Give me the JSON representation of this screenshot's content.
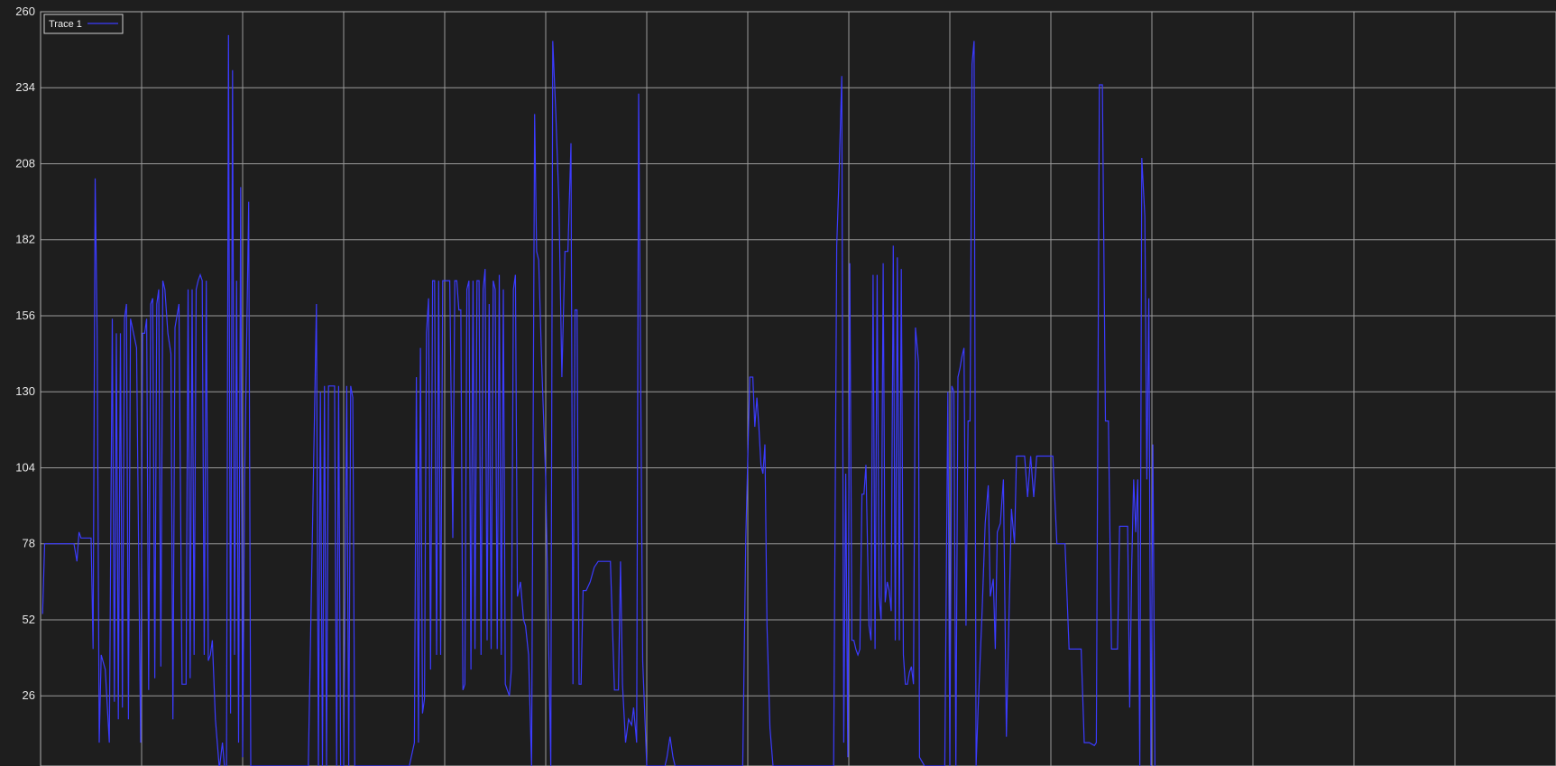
{
  "colors": {
    "background": "#1e1e1e",
    "plot_background": "#1e1e1e",
    "grid": "#9a9a9a",
    "axes_frame": "#b0b0b0",
    "tick_label": "#e6e6e6",
    "trace": "#3b3bff",
    "legend_border": "#d0d0d0"
  },
  "legend": {
    "label": "Trace 1",
    "placement": "top-left"
  },
  "chart_data": {
    "type": "line",
    "title": "",
    "xlabel": "",
    "ylabel": "",
    "ylim": [
      2,
      260
    ],
    "y_ticks": [
      26,
      52,
      78,
      104,
      130,
      156,
      182,
      208,
      234,
      260
    ],
    "x_grid_divisions": 15,
    "grid": true,
    "series": [
      {
        "name": "Trace 1",
        "points": [
          [
            0.2,
            54
          ],
          [
            0.4,
            78
          ],
          [
            3.3,
            78
          ],
          [
            3.6,
            72
          ],
          [
            3.8,
            82
          ],
          [
            4.0,
            80
          ],
          [
            5.0,
            80
          ],
          [
            5.2,
            42
          ],
          [
            5.4,
            203
          ],
          [
            5.6,
            150
          ],
          [
            5.8,
            10
          ],
          [
            6.0,
            40
          ],
          [
            6.4,
            35
          ],
          [
            6.8,
            10
          ],
          [
            7.1,
            155
          ],
          [
            7.3,
            24
          ],
          [
            7.5,
            150
          ],
          [
            7.7,
            18
          ],
          [
            7.9,
            150
          ],
          [
            8.1,
            22
          ],
          [
            8.3,
            155
          ],
          [
            8.5,
            160
          ],
          [
            8.7,
            18
          ],
          [
            8.9,
            155
          ],
          [
            9.5,
            145
          ],
          [
            9.9,
            10
          ],
          [
            10.1,
            150
          ],
          [
            10.3,
            150
          ],
          [
            10.5,
            155
          ],
          [
            10.7,
            28
          ],
          [
            10.9,
            160
          ],
          [
            11.1,
            162
          ],
          [
            11.3,
            32
          ],
          [
            11.5,
            160
          ],
          [
            11.7,
            165
          ],
          [
            11.9,
            36
          ],
          [
            12.1,
            168
          ],
          [
            12.3,
            165
          ],
          [
            12.6,
            150
          ],
          [
            12.9,
            143
          ],
          [
            13.1,
            18
          ],
          [
            13.3,
            152
          ],
          [
            13.7,
            160
          ],
          [
            14.0,
            30
          ],
          [
            14.4,
            30
          ],
          [
            14.6,
            165
          ],
          [
            14.8,
            32
          ],
          [
            15.0,
            165
          ],
          [
            15.2,
            40
          ],
          [
            15.4,
            165
          ],
          [
            15.6,
            168
          ],
          [
            15.8,
            170
          ],
          [
            16.0,
            168
          ],
          [
            16.2,
            40
          ],
          [
            16.4,
            168
          ],
          [
            16.6,
            38
          ],
          [
            16.8,
            40
          ],
          [
            17.0,
            45
          ],
          [
            17.3,
            18
          ],
          [
            17.7,
            1
          ],
          [
            18.0,
            10
          ],
          [
            18.2,
            2
          ],
          [
            18.4,
            1
          ],
          [
            18.6,
            252
          ],
          [
            18.8,
            20
          ],
          [
            19.0,
            240
          ],
          [
            19.2,
            40
          ],
          [
            19.4,
            168
          ],
          [
            19.6,
            10
          ],
          [
            19.8,
            200
          ],
          [
            20.0,
            5
          ],
          [
            20.2,
            100
          ],
          [
            20.6,
            195
          ],
          [
            20.8,
            2
          ],
          [
            26.5,
            2
          ],
          [
            27.0,
            100
          ],
          [
            27.3,
            160
          ],
          [
            27.5,
            2
          ],
          [
            27.7,
            130
          ],
          [
            27.9,
            2
          ],
          [
            28.1,
            132
          ],
          [
            28.3,
            2
          ],
          [
            28.5,
            132
          ],
          [
            28.8,
            132
          ],
          [
            29.1,
            132
          ],
          [
            29.3,
            2
          ],
          [
            29.5,
            132
          ],
          [
            29.7,
            2
          ],
          [
            30.0,
            2
          ],
          [
            30.3,
            132
          ],
          [
            30.5,
            2
          ],
          [
            30.7,
            132
          ],
          [
            30.9,
            128
          ],
          [
            31.1,
            2
          ],
          [
            36.5,
            2
          ],
          [
            37.0,
            10
          ],
          [
            37.2,
            135
          ],
          [
            37.4,
            10
          ],
          [
            37.6,
            145
          ],
          [
            37.8,
            20
          ],
          [
            38.0,
            25
          ],
          [
            38.2,
            150
          ],
          [
            38.4,
            162
          ],
          [
            38.6,
            35
          ],
          [
            38.8,
            168
          ],
          [
            39.0,
            168
          ],
          [
            39.2,
            40
          ],
          [
            39.4,
            168
          ],
          [
            39.6,
            40
          ],
          [
            39.8,
            168
          ],
          [
            40.0,
            168
          ],
          [
            40.2,
            168
          ],
          [
            40.5,
            168
          ],
          [
            40.8,
            80
          ],
          [
            41.0,
            168
          ],
          [
            41.2,
            168
          ],
          [
            41.4,
            158
          ],
          [
            41.6,
            158
          ],
          [
            41.8,
            28
          ],
          [
            42.0,
            30
          ],
          [
            42.2,
            165
          ],
          [
            42.4,
            168
          ],
          [
            42.6,
            35
          ],
          [
            42.8,
            168
          ],
          [
            43.0,
            42
          ],
          [
            43.2,
            168
          ],
          [
            43.4,
            168
          ],
          [
            43.6,
            40
          ],
          [
            43.8,
            165
          ],
          [
            44.0,
            172
          ],
          [
            44.2,
            45
          ],
          [
            44.4,
            160
          ],
          [
            44.6,
            42
          ],
          [
            44.8,
            168
          ],
          [
            45.0,
            165
          ],
          [
            45.2,
            42
          ],
          [
            45.4,
            170
          ],
          [
            45.6,
            40
          ],
          [
            45.8,
            165
          ],
          [
            46.0,
            30
          ],
          [
            46.2,
            28
          ],
          [
            46.4,
            26
          ],
          [
            46.6,
            35
          ],
          [
            46.8,
            165
          ],
          [
            47.0,
            170
          ],
          [
            47.2,
            60
          ],
          [
            47.5,
            65
          ],
          [
            47.8,
            52
          ],
          [
            48.0,
            50
          ],
          [
            48.3,
            40
          ],
          [
            48.6,
            2
          ],
          [
            48.9,
            225
          ],
          [
            49.1,
            178
          ],
          [
            49.3,
            175
          ],
          [
            49.6,
            140
          ],
          [
            50.0,
            100
          ],
          [
            50.5,
            2
          ],
          [
            50.7,
            250
          ],
          [
            51.0,
            225
          ],
          [
            51.3,
            195
          ],
          [
            51.6,
            135
          ],
          [
            51.9,
            178
          ],
          [
            52.2,
            178
          ],
          [
            52.5,
            215
          ],
          [
            52.7,
            30
          ],
          [
            52.9,
            158
          ],
          [
            53.1,
            158
          ],
          [
            53.3,
            30
          ],
          [
            53.5,
            30
          ],
          [
            53.7,
            62
          ],
          [
            54.0,
            62
          ],
          [
            54.4,
            65
          ],
          [
            54.8,
            70
          ],
          [
            55.2,
            72
          ],
          [
            55.6,
            72
          ],
          [
            56.0,
            72
          ],
          [
            56.4,
            72
          ],
          [
            56.8,
            28
          ],
          [
            57.2,
            28
          ],
          [
            57.4,
            72
          ],
          [
            57.6,
            30
          ],
          [
            57.9,
            10
          ],
          [
            58.2,
            18
          ],
          [
            58.5,
            16
          ],
          [
            58.7,
            22
          ],
          [
            59.0,
            10
          ],
          [
            59.2,
            232
          ],
          [
            59.6,
            38
          ],
          [
            60.0,
            2
          ],
          [
            61.5,
            2
          ],
          [
            61.8,
            2
          ],
          [
            62.0,
            5
          ],
          [
            62.3,
            12
          ],
          [
            62.6,
            5
          ],
          [
            62.8,
            2
          ],
          [
            69.5,
            2
          ],
          [
            69.8,
            80
          ],
          [
            70.2,
            135
          ],
          [
            70.5,
            135
          ],
          [
            70.7,
            118
          ],
          [
            70.9,
            128
          ],
          [
            71.1,
            118
          ],
          [
            71.3,
            105
          ],
          [
            71.5,
            102
          ],
          [
            71.7,
            112
          ],
          [
            71.9,
            50
          ],
          [
            72.2,
            15
          ],
          [
            72.5,
            2
          ],
          [
            78.5,
            2
          ],
          [
            78.8,
            180
          ],
          [
            79.0,
            200
          ],
          [
            79.3,
            238
          ],
          [
            79.5,
            10
          ],
          [
            79.7,
            102
          ],
          [
            79.9,
            5
          ],
          [
            80.1,
            174
          ],
          [
            80.3,
            45
          ],
          [
            80.5,
            45
          ],
          [
            80.7,
            42
          ],
          [
            80.9,
            40
          ],
          [
            81.1,
            42
          ],
          [
            81.3,
            95
          ],
          [
            81.5,
            95
          ],
          [
            81.7,
            105
          ],
          [
            82.0,
            50
          ],
          [
            82.2,
            45
          ],
          [
            82.4,
            170
          ],
          [
            82.6,
            42
          ],
          [
            82.8,
            170
          ],
          [
            83.0,
            60
          ],
          [
            83.2,
            52
          ],
          [
            83.4,
            174
          ],
          [
            83.6,
            58
          ],
          [
            83.8,
            65
          ],
          [
            84.0,
            62
          ],
          [
            84.2,
            55
          ],
          [
            84.4,
            180
          ],
          [
            84.6,
            45
          ],
          [
            84.8,
            176
          ],
          [
            85.0,
            45
          ],
          [
            85.2,
            172
          ],
          [
            85.4,
            40
          ],
          [
            85.6,
            30
          ],
          [
            85.8,
            30
          ],
          [
            86.0,
            34
          ],
          [
            86.2,
            36
          ],
          [
            86.4,
            30
          ],
          [
            86.6,
            152
          ],
          [
            86.9,
            140
          ],
          [
            87.0,
            5
          ],
          [
            87.5,
            2
          ],
          [
            89.5,
            2
          ],
          [
            89.8,
            130
          ],
          [
            90.0,
            2
          ],
          [
            90.2,
            132
          ],
          [
            90.4,
            130
          ],
          [
            90.6,
            2
          ],
          [
            90.8,
            135
          ],
          [
            91.0,
            138
          ],
          [
            91.2,
            142
          ],
          [
            91.4,
            145
          ],
          [
            91.6,
            50
          ],
          [
            91.8,
            120
          ],
          [
            92.0,
            120
          ],
          [
            92.2,
            242
          ],
          [
            92.4,
            250
          ],
          [
            92.6,
            2
          ],
          [
            92.8,
            22
          ],
          [
            93.2,
            55
          ],
          [
            93.5,
            85
          ],
          [
            93.8,
            98
          ],
          [
            94.0,
            60
          ],
          [
            94.3,
            66
          ],
          [
            94.5,
            42
          ],
          [
            94.7,
            82
          ],
          [
            95.0,
            85
          ],
          [
            95.3,
            100
          ],
          [
            95.6,
            12
          ],
          [
            95.8,
            45
          ],
          [
            96.1,
            90
          ],
          [
            96.4,
            78
          ],
          [
            96.6,
            108
          ],
          [
            97.0,
            108
          ],
          [
            97.4,
            108
          ],
          [
            97.7,
            94
          ],
          [
            98.0,
            108
          ],
          [
            98.3,
            94
          ],
          [
            98.6,
            108
          ],
          [
            99.0,
            108
          ],
          [
            99.4,
            108
          ],
          [
            99.8,
            108
          ],
          [
            100.2,
            108
          ],
          [
            100.6,
            78
          ],
          [
            101.0,
            78
          ],
          [
            101.4,
            78
          ],
          [
            101.8,
            42
          ],
          [
            102.2,
            42
          ],
          [
            102.6,
            42
          ],
          [
            103.0,
            42
          ],
          [
            103.3,
            10
          ],
          [
            103.8,
            10
          ],
          [
            104.3,
            9
          ],
          [
            104.5,
            10
          ],
          [
            104.8,
            235
          ],
          [
            105.1,
            235
          ],
          [
            105.4,
            120
          ],
          [
            105.7,
            120
          ],
          [
            106.0,
            42
          ],
          [
            106.4,
            42
          ],
          [
            106.6,
            42
          ],
          [
            106.8,
            84
          ],
          [
            107.1,
            84
          ],
          [
            107.6,
            84
          ],
          [
            107.8,
            22
          ],
          [
            108.0,
            70
          ],
          [
            108.2,
            100
          ],
          [
            108.4,
            82
          ],
          [
            108.6,
            100
          ],
          [
            108.8,
            2
          ],
          [
            109.0,
            210
          ],
          [
            109.3,
            190
          ],
          [
            109.5,
            100
          ],
          [
            109.7,
            162
          ],
          [
            109.9,
            2
          ],
          [
            110.1,
            112
          ],
          [
            110.3,
            2
          ]
        ]
      }
    ]
  }
}
